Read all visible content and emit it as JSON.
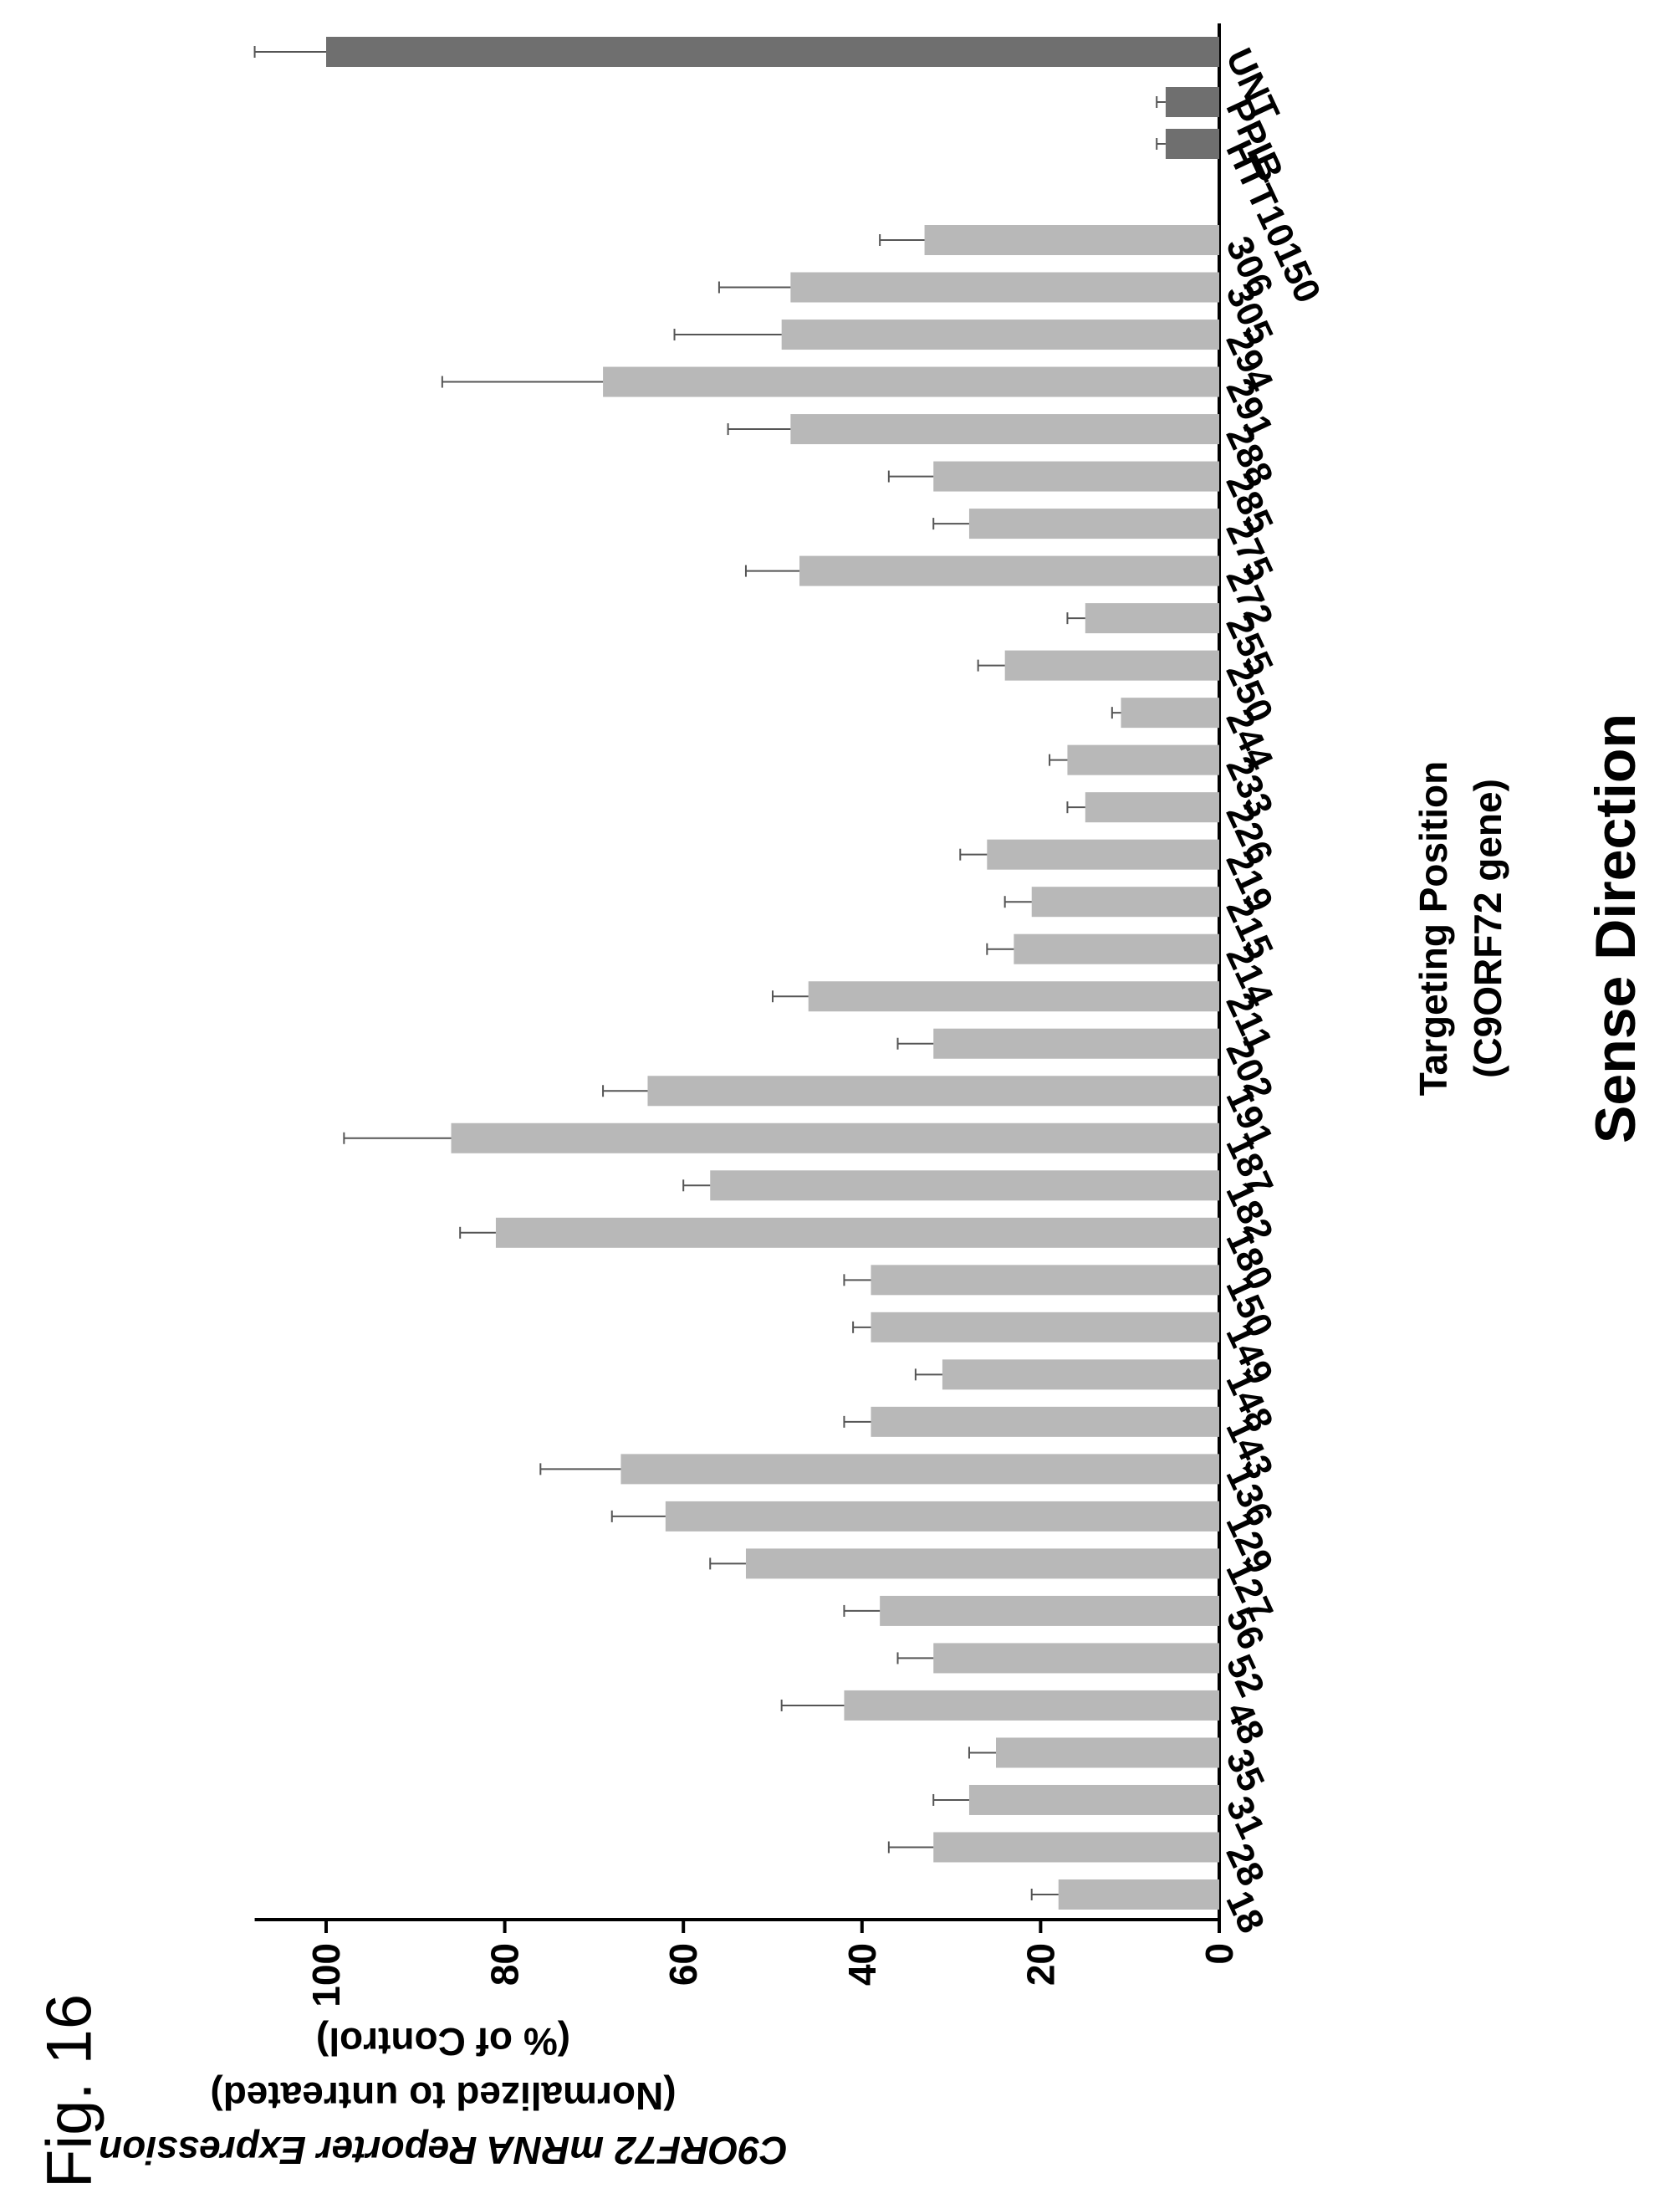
{
  "figure_label": "Fig. 16",
  "chart_data": {
    "type": "bar",
    "orientation": "rotated-90",
    "ylabel_lines": [
      "C9ORF72 mRNA Reporter Expression",
      "(Normalized to untreated)",
      "(% of Control)"
    ],
    "xlabel_lines": [
      "Targeting Position",
      "(C9ORF72 gene)"
    ],
    "subtitle": "Sense Direction",
    "ylim": [
      0,
      108
    ],
    "yticks": [
      0,
      20,
      40,
      60,
      80,
      100
    ],
    "grid": false,
    "categories": [
      "18",
      "28",
      "31",
      "35",
      "48",
      "52",
      "56",
      "127",
      "129",
      "136",
      "143",
      "148",
      "149",
      "150",
      "180",
      "182",
      "187",
      "191",
      "202",
      "211",
      "214",
      "215",
      "219",
      "226",
      "233",
      "244",
      "250",
      "255",
      "272",
      "275",
      "285",
      "288",
      "291",
      "294",
      "305",
      "306",
      "HTT10150",
      "PPIB",
      "UNT"
    ],
    "values": [
      18,
      32,
      28,
      25,
      42,
      32,
      38,
      53,
      62,
      67,
      39,
      31,
      39,
      39,
      81,
      57,
      86,
      64,
      32,
      46,
      23,
      21,
      26,
      15,
      17,
      11,
      24,
      15,
      47,
      28,
      32,
      48,
      69,
      49,
      48,
      33,
      6,
      6,
      100
    ],
    "error": [
      3,
      5,
      4,
      3,
      7,
      4,
      4,
      4,
      6,
      9,
      3,
      3,
      2,
      3,
      4,
      3,
      12,
      5,
      4,
      4,
      3,
      3,
      3,
      2,
      2,
      1,
      3,
      2,
      6,
      4,
      5,
      7,
      18,
      12,
      8,
      5,
      1,
      1,
      8
    ],
    "colors": {
      "test": "#b8b8b8",
      "control": "#6f6f6f",
      "error_bar": "#555555",
      "axis": "#000000"
    },
    "control_categories": [
      "HTT10150",
      "PPIB",
      "UNT"
    ]
  }
}
